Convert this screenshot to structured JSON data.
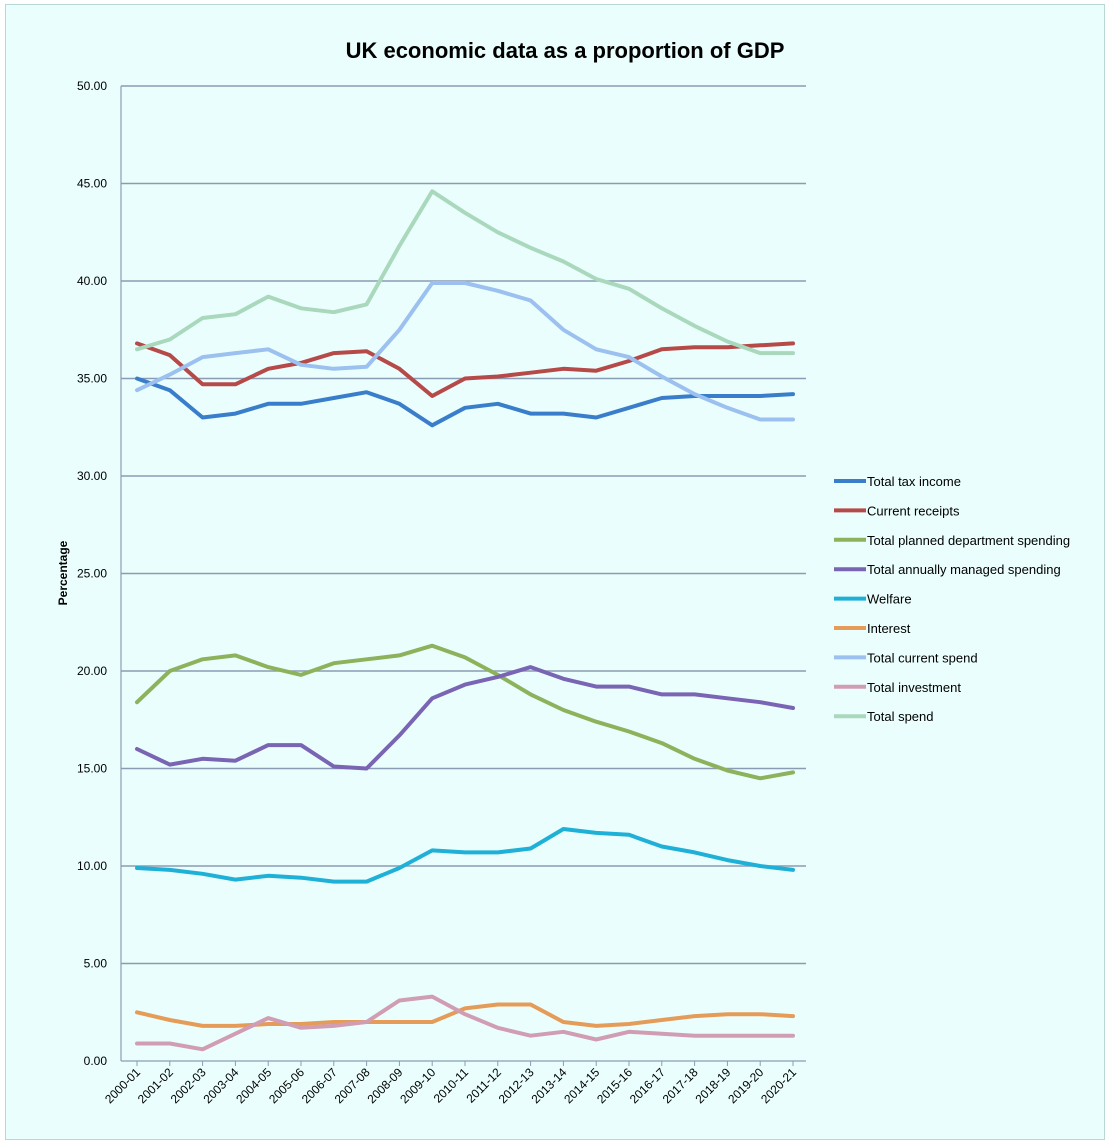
{
  "chart_data": {
    "type": "line",
    "title": "UK economic data as a proportion of GDP",
    "xlabel": "",
    "ylabel": "Percentage",
    "ylim": [
      0,
      50
    ],
    "y_ticks": [
      "0.00",
      "5.00",
      "10.00",
      "15.00",
      "20.00",
      "25.00",
      "30.00",
      "35.00",
      "40.00",
      "45.00",
      "50.00"
    ],
    "grid": true,
    "legend_position": "right",
    "categories": [
      "2000-01",
      "2001-02",
      "2002-03",
      "2003-04",
      "2004-05",
      "2005-06",
      "2006-07",
      "2007-08",
      "2008-09",
      "2009-10",
      "2010-11",
      "2011-12",
      "2012-13",
      "2013-14",
      "2014-15",
      "2015-16",
      "2016-17",
      "2017-18",
      "2018-19",
      "2019-20",
      "2020-21"
    ],
    "series": [
      {
        "name": "Total tax income",
        "color": "#3a7ecb",
        "values": [
          35.0,
          34.4,
          33.0,
          33.2,
          33.7,
          33.7,
          34.0,
          34.3,
          33.7,
          32.6,
          33.5,
          33.7,
          33.2,
          33.2,
          33.0,
          33.5,
          34.0,
          34.1,
          34.1,
          34.1,
          34.2
        ]
      },
      {
        "name": "Current receipts",
        "color": "#b64a49",
        "values": [
          36.8,
          36.2,
          34.7,
          34.7,
          35.5,
          35.8,
          36.3,
          36.4,
          35.5,
          34.1,
          35.0,
          35.1,
          35.3,
          35.5,
          35.4,
          35.9,
          36.5,
          36.6,
          36.6,
          36.7,
          36.8
        ]
      },
      {
        "name": "Total planned department spending",
        "color": "#8cb25c",
        "values": [
          18.4,
          20.0,
          20.6,
          20.8,
          20.2,
          19.8,
          20.4,
          20.6,
          20.8,
          21.3,
          20.7,
          19.8,
          18.8,
          18.0,
          17.4,
          16.9,
          16.3,
          15.5,
          14.9,
          14.5,
          14.8
        ]
      },
      {
        "name": "Total annually managed spending",
        "color": "#7a64b4",
        "values": [
          16.0,
          15.2,
          15.5,
          15.4,
          16.2,
          16.2,
          15.1,
          15.0,
          16.7,
          18.6,
          19.3,
          19.7,
          20.2,
          19.6,
          19.2,
          19.2,
          18.8,
          18.8,
          18.6,
          18.4,
          18.1
        ]
      },
      {
        "name": "Welfare",
        "color": "#1fb0d8",
        "values": [
          9.9,
          9.8,
          9.6,
          9.3,
          9.5,
          9.4,
          9.2,
          9.2,
          9.9,
          10.8,
          10.7,
          10.7,
          10.9,
          11.9,
          11.7,
          11.6,
          11.0,
          10.7,
          10.3,
          10.0,
          9.8
        ]
      },
      {
        "name": "Interest",
        "color": "#e59c58",
        "values": [
          2.5,
          2.1,
          1.8,
          1.8,
          1.9,
          1.9,
          2.0,
          2.0,
          2.0,
          2.0,
          2.7,
          2.9,
          2.9,
          2.0,
          1.8,
          1.9,
          2.1,
          2.3,
          2.4,
          2.4,
          2.3
        ]
      },
      {
        "name": "Total current spend",
        "color": "#9cc0ef",
        "values": [
          34.4,
          35.2,
          36.1,
          36.3,
          36.5,
          35.7,
          35.5,
          35.6,
          37.5,
          39.9,
          39.9,
          39.5,
          39.0,
          37.5,
          36.5,
          36.1,
          35.1,
          34.2,
          33.5,
          32.9,
          32.9
        ]
      },
      {
        "name": "Total investment",
        "color": "#d19db3",
        "values": [
          0.9,
          0.9,
          0.6,
          1.4,
          2.2,
          1.7,
          1.8,
          2.0,
          3.1,
          3.3,
          2.4,
          1.7,
          1.3,
          1.5,
          1.1,
          1.5,
          1.4,
          1.3,
          1.3,
          1.3,
          1.3
        ]
      },
      {
        "name": "Total spend",
        "color": "#a9d8bd",
        "values": [
          36.5,
          37.0,
          38.1,
          38.3,
          39.2,
          38.6,
          38.4,
          38.8,
          41.8,
          44.6,
          43.5,
          42.5,
          41.7,
          41.0,
          40.1,
          39.6,
          38.6,
          37.7,
          36.9,
          36.3,
          36.3
        ]
      }
    ]
  }
}
